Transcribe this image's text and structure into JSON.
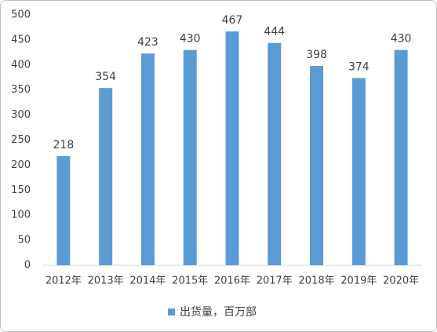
{
  "chart_data": {
    "type": "bar",
    "categories": [
      "2012年",
      "2013年",
      "2014年",
      "2015年",
      "2016年",
      "2017年",
      "2018年",
      "2019年",
      "2020年"
    ],
    "series": [
      {
        "name": "出货量，百万部",
        "color": "#5b9bd5",
        "values": [
          218,
          354,
          423,
          430,
          467,
          444,
          398,
          374,
          430
        ]
      }
    ],
    "ylim": [
      0,
      500
    ],
    "yticks": [
      0,
      50,
      100,
      150,
      200,
      250,
      300,
      350,
      400,
      450,
      500
    ],
    "grid": false,
    "legend": "bottom"
  }
}
